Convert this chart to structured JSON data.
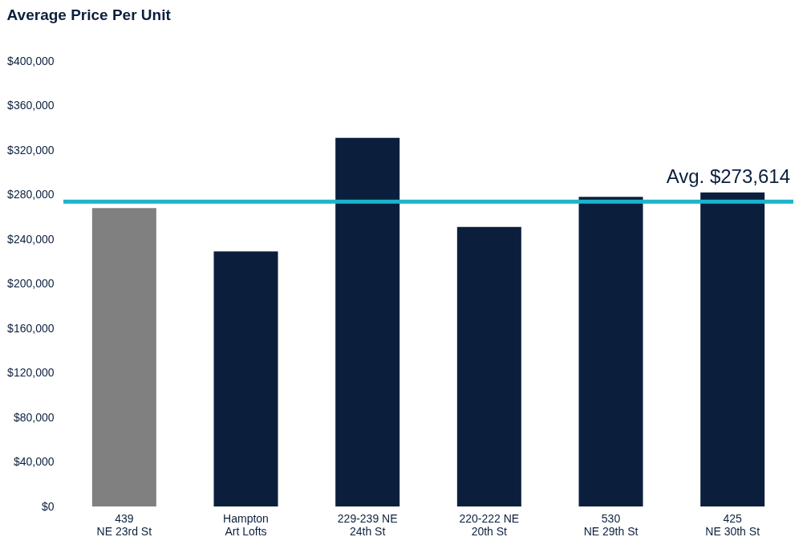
{
  "chart_data": {
    "type": "bar",
    "title": "Average Price Per Unit",
    "categories": [
      "439\nNE 23rd St",
      "Hampton\nArt Lofts",
      "229-239 NE\n24th St",
      "220-222 NE\n20th St",
      "530\nNE 29th St",
      "425\nNE 30th St"
    ],
    "values": [
      268000,
      229000,
      331000,
      251000,
      278000,
      282000
    ],
    "colors": [
      "#808080",
      "#0b1f3d",
      "#0b1f3d",
      "#0b1f3d",
      "#0b1f3d",
      "#0b1f3d"
    ],
    "ylim": [
      0,
      400000
    ],
    "yticks": [
      {
        "value": 0,
        "label": "$0"
      },
      {
        "value": 40000,
        "label": "$40,000"
      },
      {
        "value": 80000,
        "label": "$80,000"
      },
      {
        "value": 120000,
        "label": "$120,000"
      },
      {
        "value": 160000,
        "label": "$160,000"
      },
      {
        "value": 200000,
        "label": "$200,000"
      },
      {
        "value": 240000,
        "label": "$240,000"
      },
      {
        "value": 280000,
        "label": "$280,000"
      },
      {
        "value": 320000,
        "label": "$320,000"
      },
      {
        "value": 360000,
        "label": "$360,000"
      },
      {
        "value": 400000,
        "label": "$400,000"
      }
    ],
    "ref_lines": [
      {
        "axis": "y",
        "value": 273614,
        "label": "Avg. $273,614",
        "color": "#1ab5cc"
      }
    ],
    "grid": false
  }
}
